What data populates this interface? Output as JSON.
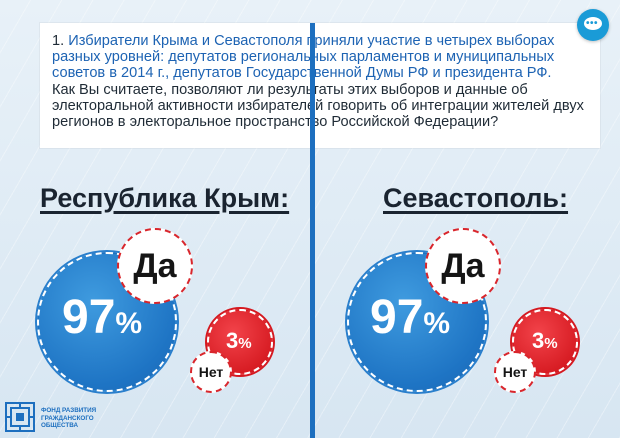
{
  "question": {
    "number": "1.",
    "blue_text": "Избиратели Крыма и Севастополя приняли участие в четырех выборах разных уровней: депутатов региональных парламентов и муниципальных советов в 2014 г., депутатов Государственной Думы РФ и президента РФ.",
    "dark_text": "Как Вы считаете, позволяют ли результаты этих выборов и данные об электоральной активности избирателей говорить об интеграции жителей двух регионов в электоральное пространство Российской Федерации?"
  },
  "regions": [
    {
      "title": "Республика Крым:",
      "yes_label": "Да",
      "yes_value": "97",
      "no_label": "Нет",
      "no_value": "3",
      "percent_sign": "%"
    },
    {
      "title": "Севастополь:",
      "yes_label": "Да",
      "yes_value": "97",
      "no_label": "Нет",
      "no_value": "3",
      "percent_sign": "%"
    }
  ],
  "logo": {
    "line1": "ФОНД РАЗВИТИЯ",
    "line2": "ГРАЖДАНСКОГО",
    "line3": "ОБЩЕСТВА"
  },
  "colors": {
    "accent_blue": "#1d6fbf",
    "yes_blue": "#1e74c4",
    "no_red": "#d51920",
    "chat_button": "#1a9bd7"
  },
  "icons": {
    "chat": "chat-bubble-icon",
    "logo": "foundation-logo-icon"
  }
}
